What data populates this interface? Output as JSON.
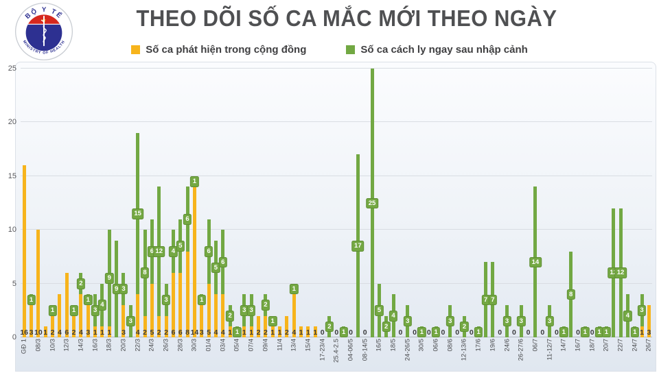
{
  "header": {
    "title": "THEO DÕI SỐ CA MẮC MỚI THEO NGÀY",
    "logo": {
      "arc_top": "BỘ Y TẾ",
      "arc_bottom": "MINISTRY OF HEALTH",
      "star": "★"
    }
  },
  "legend": [
    {
      "label": "Số ca phát hiện trong cộng đồng",
      "color": "#F7B41C"
    },
    {
      "label": "Số ca cách ly ngay sau nhập cảnh",
      "color": "#72A843"
    }
  ],
  "colors": {
    "community": "#F7B41C",
    "quarantine": "#72A843",
    "badge": "#74A843",
    "value_text": "#3a3a3c"
  },
  "chart_data": {
    "type": "bar",
    "stacked": true,
    "title": "THEO DÕI SỐ CA MẮC MỚI THEO NGÀY",
    "xlabel": "",
    "ylabel": "",
    "ylim": [
      0,
      25
    ],
    "yticks": [
      0,
      5,
      10,
      15,
      20,
      25
    ],
    "grid": true,
    "legend_position": "top",
    "series_names": [
      "Số ca phát hiện trong cộng đồng",
      "Số ca cách ly ngay sau nhập cảnh"
    ],
    "bars": [
      {
        "label": "GĐ 1",
        "community": 16,
        "quarantine": 0
      },
      {
        "label": "",
        "community": 3,
        "quarantine": 1
      },
      {
        "label": "08/3",
        "community": 10,
        "quarantine": 0
      },
      {
        "label": "",
        "community": 1,
        "quarantine": 0
      },
      {
        "label": "10/3",
        "community": 2,
        "quarantine": 1
      },
      {
        "label": "",
        "community": 4,
        "quarantine": 0
      },
      {
        "label": "12/3",
        "community": 6,
        "quarantine": 0
      },
      {
        "label": "",
        "community": 2,
        "quarantine": 1
      },
      {
        "label": "14/3",
        "community": 4,
        "quarantine": 2
      },
      {
        "label": "",
        "community": 3,
        "quarantine": 1
      },
      {
        "label": "16/3",
        "community": 1,
        "quarantine": 3
      },
      {
        "label": "",
        "community": 1,
        "quarantine": 4
      },
      {
        "label": "18/3",
        "community": 1,
        "quarantine": 9
      },
      {
        "label": "",
        "community": 0,
        "quarantine": 9
      },
      {
        "label": "20/3",
        "community": 3,
        "quarantine": 3
      },
      {
        "label": "",
        "community": 0,
        "quarantine": 3
      },
      {
        "label": "22/3",
        "community": 4,
        "quarantine": 15
      },
      {
        "label": "",
        "community": 2,
        "quarantine": 8
      },
      {
        "label": "24/3",
        "community": 5,
        "quarantine": 6
      },
      {
        "label": "",
        "community": 2,
        "quarantine": 12
      },
      {
        "label": "26/3",
        "community": 2,
        "quarantine": 3
      },
      {
        "label": "",
        "community": 6,
        "quarantine": 4
      },
      {
        "label": "28/3",
        "community": 6,
        "quarantine": 5
      },
      {
        "label": "",
        "community": 8,
        "quarantine": 6
      },
      {
        "label": "30/3",
        "community": 14,
        "quarantine": 1
      },
      {
        "label": "",
        "community": 3,
        "quarantine": 1
      },
      {
        "label": "01/4",
        "community": 5,
        "quarantine": 6
      },
      {
        "label": "",
        "community": 4,
        "quarantine": 5
      },
      {
        "label": "03/4",
        "community": 4,
        "quarantine": 6
      },
      {
        "label": "",
        "community": 1,
        "quarantine": 2
      },
      {
        "label": "05/4",
        "community": 0,
        "quarantine": 1
      },
      {
        "label": "",
        "community": 1,
        "quarantine": 3
      },
      {
        "label": "07/4",
        "community": 1,
        "quarantine": 3
      },
      {
        "label": "",
        "community": 2,
        "quarantine": 0
      },
      {
        "label": "09/4",
        "community": 2,
        "quarantine": 2
      },
      {
        "label": "",
        "community": 1,
        "quarantine": 1
      },
      {
        "label": "11/4",
        "community": 1,
        "quarantine": 0
      },
      {
        "label": "",
        "community": 2,
        "quarantine": 0
      },
      {
        "label": "13/4",
        "community": 4,
        "quarantine": 1
      },
      {
        "label": "",
        "community": 1,
        "quarantine": 0
      },
      {
        "label": "15/4",
        "community": 1,
        "quarantine": 0
      },
      {
        "label": "",
        "community": 1,
        "quarantine": 0
      },
      {
        "label": "17-23/4",
        "community": 0,
        "quarantine": 0
      },
      {
        "label": "",
        "community": 0,
        "quarantine": 2
      },
      {
        "label": "25.4-2.5",
        "community": 0,
        "quarantine": 0
      },
      {
        "label": "",
        "community": 0,
        "quarantine": 1
      },
      {
        "label": "04-06/5",
        "community": 0,
        "quarantine": 0
      },
      {
        "label": "",
        "community": 0,
        "quarantine": 17
      },
      {
        "label": "08-14/5",
        "community": 0,
        "quarantine": 0
      },
      {
        "label": "",
        "community": 0,
        "quarantine": 25
      },
      {
        "label": "16/5",
        "community": 0,
        "quarantine": 5
      },
      {
        "label": "",
        "community": 0,
        "quarantine": 2
      },
      {
        "label": "18/5",
        "community": 0,
        "quarantine": 4
      },
      {
        "label": "",
        "community": 0,
        "quarantine": 0
      },
      {
        "label": "24-26/5",
        "community": 0,
        "quarantine": 3
      },
      {
        "label": "",
        "community": 0,
        "quarantine": 0
      },
      {
        "label": "30/5",
        "community": 0,
        "quarantine": 1
      },
      {
        "label": "",
        "community": 0,
        "quarantine": 0
      },
      {
        "label": "06/6",
        "community": 0,
        "quarantine": 1
      },
      {
        "label": "",
        "community": 0,
        "quarantine": 0
      },
      {
        "label": "08/6",
        "community": 0,
        "quarantine": 3
      },
      {
        "label": "",
        "community": 0,
        "quarantine": 0
      },
      {
        "label": "12-13/6",
        "community": 0,
        "quarantine": 2
      },
      {
        "label": "",
        "community": 0,
        "quarantine": 0
      },
      {
        "label": "17/6",
        "community": 0,
        "quarantine": 1
      },
      {
        "label": "",
        "community": 0,
        "quarantine": 7
      },
      {
        "label": "19/6",
        "community": 0,
        "quarantine": 7
      },
      {
        "label": "",
        "community": 0,
        "quarantine": 0
      },
      {
        "label": "24/6",
        "community": 0,
        "quarantine": 3
      },
      {
        "label": "",
        "community": 0,
        "quarantine": 0
      },
      {
        "label": "26-27/6",
        "community": 0,
        "quarantine": 3
      },
      {
        "label": "",
        "community": 0,
        "quarantine": 0
      },
      {
        "label": "06/7",
        "community": 0,
        "quarantine": 14
      },
      {
        "label": "",
        "community": 0,
        "quarantine": 0
      },
      {
        "label": "11-12/7",
        "community": 0,
        "quarantine": 3
      },
      {
        "label": "",
        "community": 0,
        "quarantine": 0
      },
      {
        "label": "14/7",
        "community": 0,
        "quarantine": 1
      },
      {
        "label": "",
        "community": 0,
        "quarantine": 8
      },
      {
        "label": "16/7",
        "community": 0,
        "quarantine": 0
      },
      {
        "label": "",
        "community": 0,
        "quarantine": 1
      },
      {
        "label": "18/7",
        "community": 0,
        "quarantine": 0
      },
      {
        "label": "",
        "community": 0,
        "quarantine": 1
      },
      {
        "label": "20/7",
        "community": 0,
        "quarantine": 1
      },
      {
        "label": "",
        "community": 0,
        "quarantine": 12
      },
      {
        "label": "22/7",
        "community": 0,
        "quarantine": 12
      },
      {
        "label": "",
        "community": 0,
        "quarantine": 4
      },
      {
        "label": "24/7",
        "community": 0,
        "quarantine": 1
      },
      {
        "label": "",
        "community": 1,
        "quarantine": 3
      },
      {
        "label": "26/7",
        "community": 3,
        "quarantine": 0
      }
    ]
  }
}
